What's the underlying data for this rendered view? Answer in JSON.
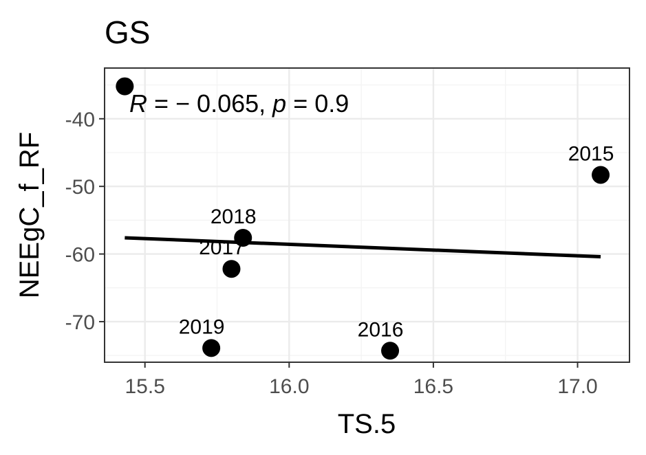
{
  "chart_data": {
    "type": "scatter",
    "title": "GS",
    "xlabel": "TS.5",
    "ylabel": "NEEgC_f_RF",
    "xlim": [
      15.36,
      17.18
    ],
    "ylim": [
      -76.0,
      -32.5
    ],
    "x_ticks": [
      15.5,
      16.0,
      16.5,
      17.0
    ],
    "x_tick_labels": [
      "15.5",
      "16.0",
      "16.5",
      "17.0"
    ],
    "y_ticks": [
      -40,
      -50,
      -60,
      -70
    ],
    "y_tick_labels": [
      "-40",
      "-50",
      "-60",
      "-70"
    ],
    "grid": true,
    "points": [
      {
        "x": 15.43,
        "y": -35.2,
        "label": ""
      },
      {
        "x": 17.08,
        "y": -48.3,
        "label": "2015"
      },
      {
        "x": 15.84,
        "y": -57.6,
        "label": "2018"
      },
      {
        "x": 15.8,
        "y": -62.2,
        "label": "2017"
      },
      {
        "x": 15.73,
        "y": -73.9,
        "label": "2019"
      },
      {
        "x": 16.35,
        "y": -74.3,
        "label": "2016"
      }
    ],
    "regression_line": {
      "x": [
        15.43,
        17.08
      ],
      "y": [
        -57.6,
        -60.4
      ]
    },
    "annotation": {
      "r_symbol": "R",
      "r_value": " = − 0.065, ",
      "p_symbol": "p",
      "p_value": " = 0.9"
    }
  }
}
